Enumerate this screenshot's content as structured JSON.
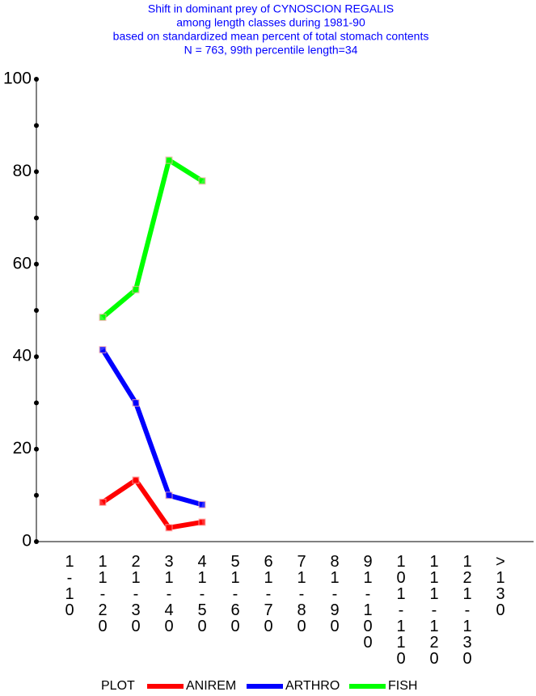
{
  "chart_data": {
    "type": "line",
    "title": [
      "Shift in dominant prey of CYNOSCION REGALIS",
      "among length classes during 1981-90",
      "based on standardized mean percent of  total stomach contents",
      "N = 763, 99th percentile  length=34"
    ],
    "categories": [
      "1-10",
      "11-20",
      "21-30",
      "31-40",
      "41-50",
      "51-60",
      "61-70",
      "71-80",
      "81-90",
      "91-100",
      "101-110",
      "111-120",
      "121-130",
      ">130"
    ],
    "series": [
      {
        "name": "ANIREM",
        "color": "#ff0000",
        "values": [
          null,
          8.5,
          13.3,
          3,
          4.2,
          null,
          null,
          null,
          null,
          null,
          null,
          null,
          null,
          null
        ]
      },
      {
        "name": "ARTHRO",
        "color": "#0000ff",
        "values": [
          null,
          41.5,
          30,
          10,
          8,
          null,
          null,
          null,
          null,
          null,
          null,
          null,
          null,
          null
        ]
      },
      {
        "name": "FISH",
        "color": "#00ff00",
        "values": [
          null,
          48.5,
          54.5,
          82.5,
          78,
          null,
          null,
          null,
          null,
          null,
          null,
          null,
          null,
          null
        ]
      }
    ],
    "legend_title": "PLOT",
    "ylim": [
      0,
      100
    ],
    "yticks": [
      0,
      20,
      40,
      60,
      80,
      100
    ],
    "yminor_ticks": [
      10,
      30,
      50,
      70,
      90
    ],
    "title_color": "#0000ff",
    "grid": false
  }
}
